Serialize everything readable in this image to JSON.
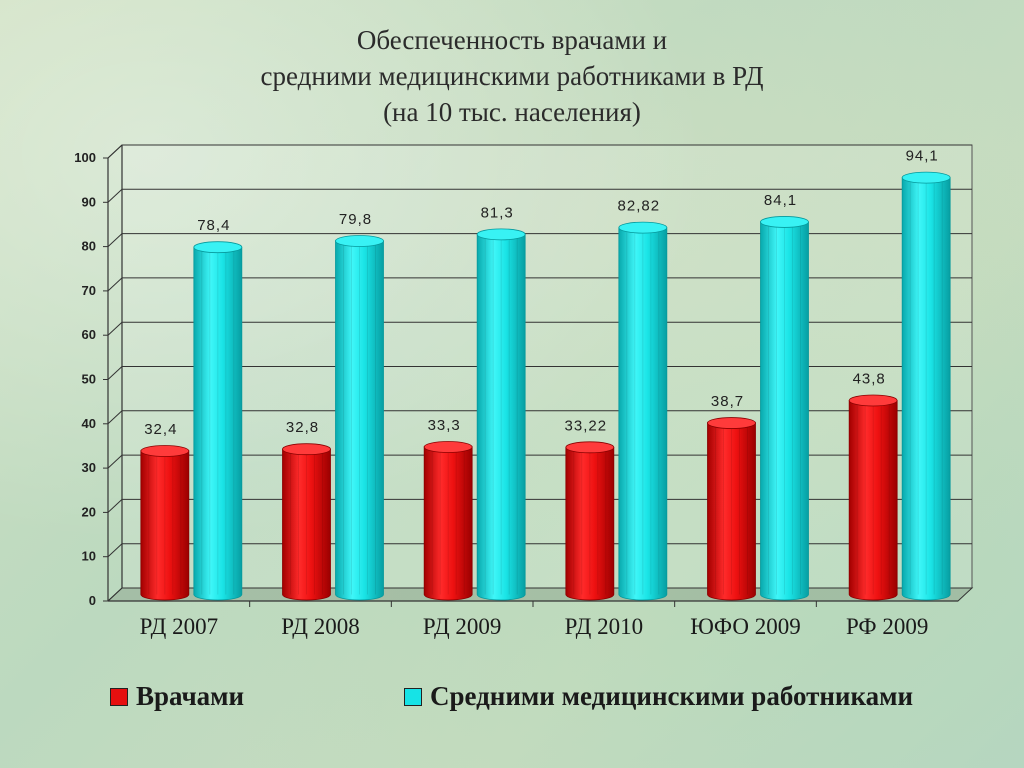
{
  "title": {
    "line1": "Обеспеченность врачами и",
    "line2": "средними медицинскими работниками в РД",
    "line3": "(на 10 тыс. населения)"
  },
  "legend": {
    "doctors_label": "Врачами",
    "nurses_label": "Средними медицинскими работниками"
  },
  "colors": {
    "doctors": "#e60f0f",
    "nurses": "#16e3e6"
  },
  "chart_data": {
    "type": "bar",
    "title": "Обеспеченность врачами и средними медицинскими работниками в РД (на 10 тыс. населения)",
    "categories": [
      "РД 2007",
      "РД 2008",
      "РД 2009",
      "РД 2010",
      "ЮФО 2009",
      "РФ 2009"
    ],
    "series": [
      {
        "name": "Врачами",
        "values": [
          32.4,
          32.8,
          33.3,
          33.22,
          38.7,
          43.8
        ],
        "labels": [
          "32,4",
          "32,8",
          "33,3",
          "33,22",
          "38,7",
          "43,8"
        ]
      },
      {
        "name": "Средними медицинскими работниками",
        "values": [
          78.4,
          79.8,
          81.3,
          82.82,
          84.1,
          94.1
        ],
        "labels": [
          "78,4",
          "79,8",
          "81,3",
          "82,82",
          "84,1",
          "94,1"
        ]
      }
    ],
    "ylim": [
      0,
      100
    ],
    "yticks": [
      0,
      10,
      20,
      30,
      40,
      50,
      60,
      70,
      80,
      90,
      100
    ],
    "grid": true,
    "legend_position": "bottom"
  }
}
